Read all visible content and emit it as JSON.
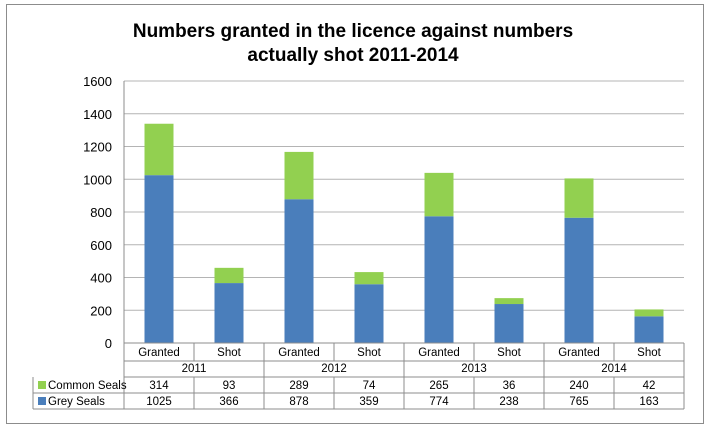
{
  "chart_data": {
    "type": "bar",
    "stacked": true,
    "title_lines": [
      "Numbers granted in the licence against numbers",
      "actually shot 2011-2014"
    ],
    "ylim": [
      0,
      1600
    ],
    "yticks": [
      0,
      200,
      400,
      600,
      800,
      1000,
      1200,
      1400,
      1600
    ],
    "grid": true,
    "years": [
      "2011",
      "2012",
      "2013",
      "2014"
    ],
    "categories": [
      "Granted",
      "Shot",
      "Granted",
      "Shot",
      "Granted",
      "Shot",
      "Granted",
      "Shot"
    ],
    "series": [
      {
        "name": "Grey Seals",
        "color": "#4a7ebb",
        "values": [
          1025,
          366,
          878,
          359,
          774,
          238,
          765,
          163
        ]
      },
      {
        "name": "Common Seals",
        "color": "#92d050",
        "values": [
          314,
          93,
          289,
          74,
          265,
          36,
          240,
          42
        ]
      }
    ],
    "data_table": true
  }
}
